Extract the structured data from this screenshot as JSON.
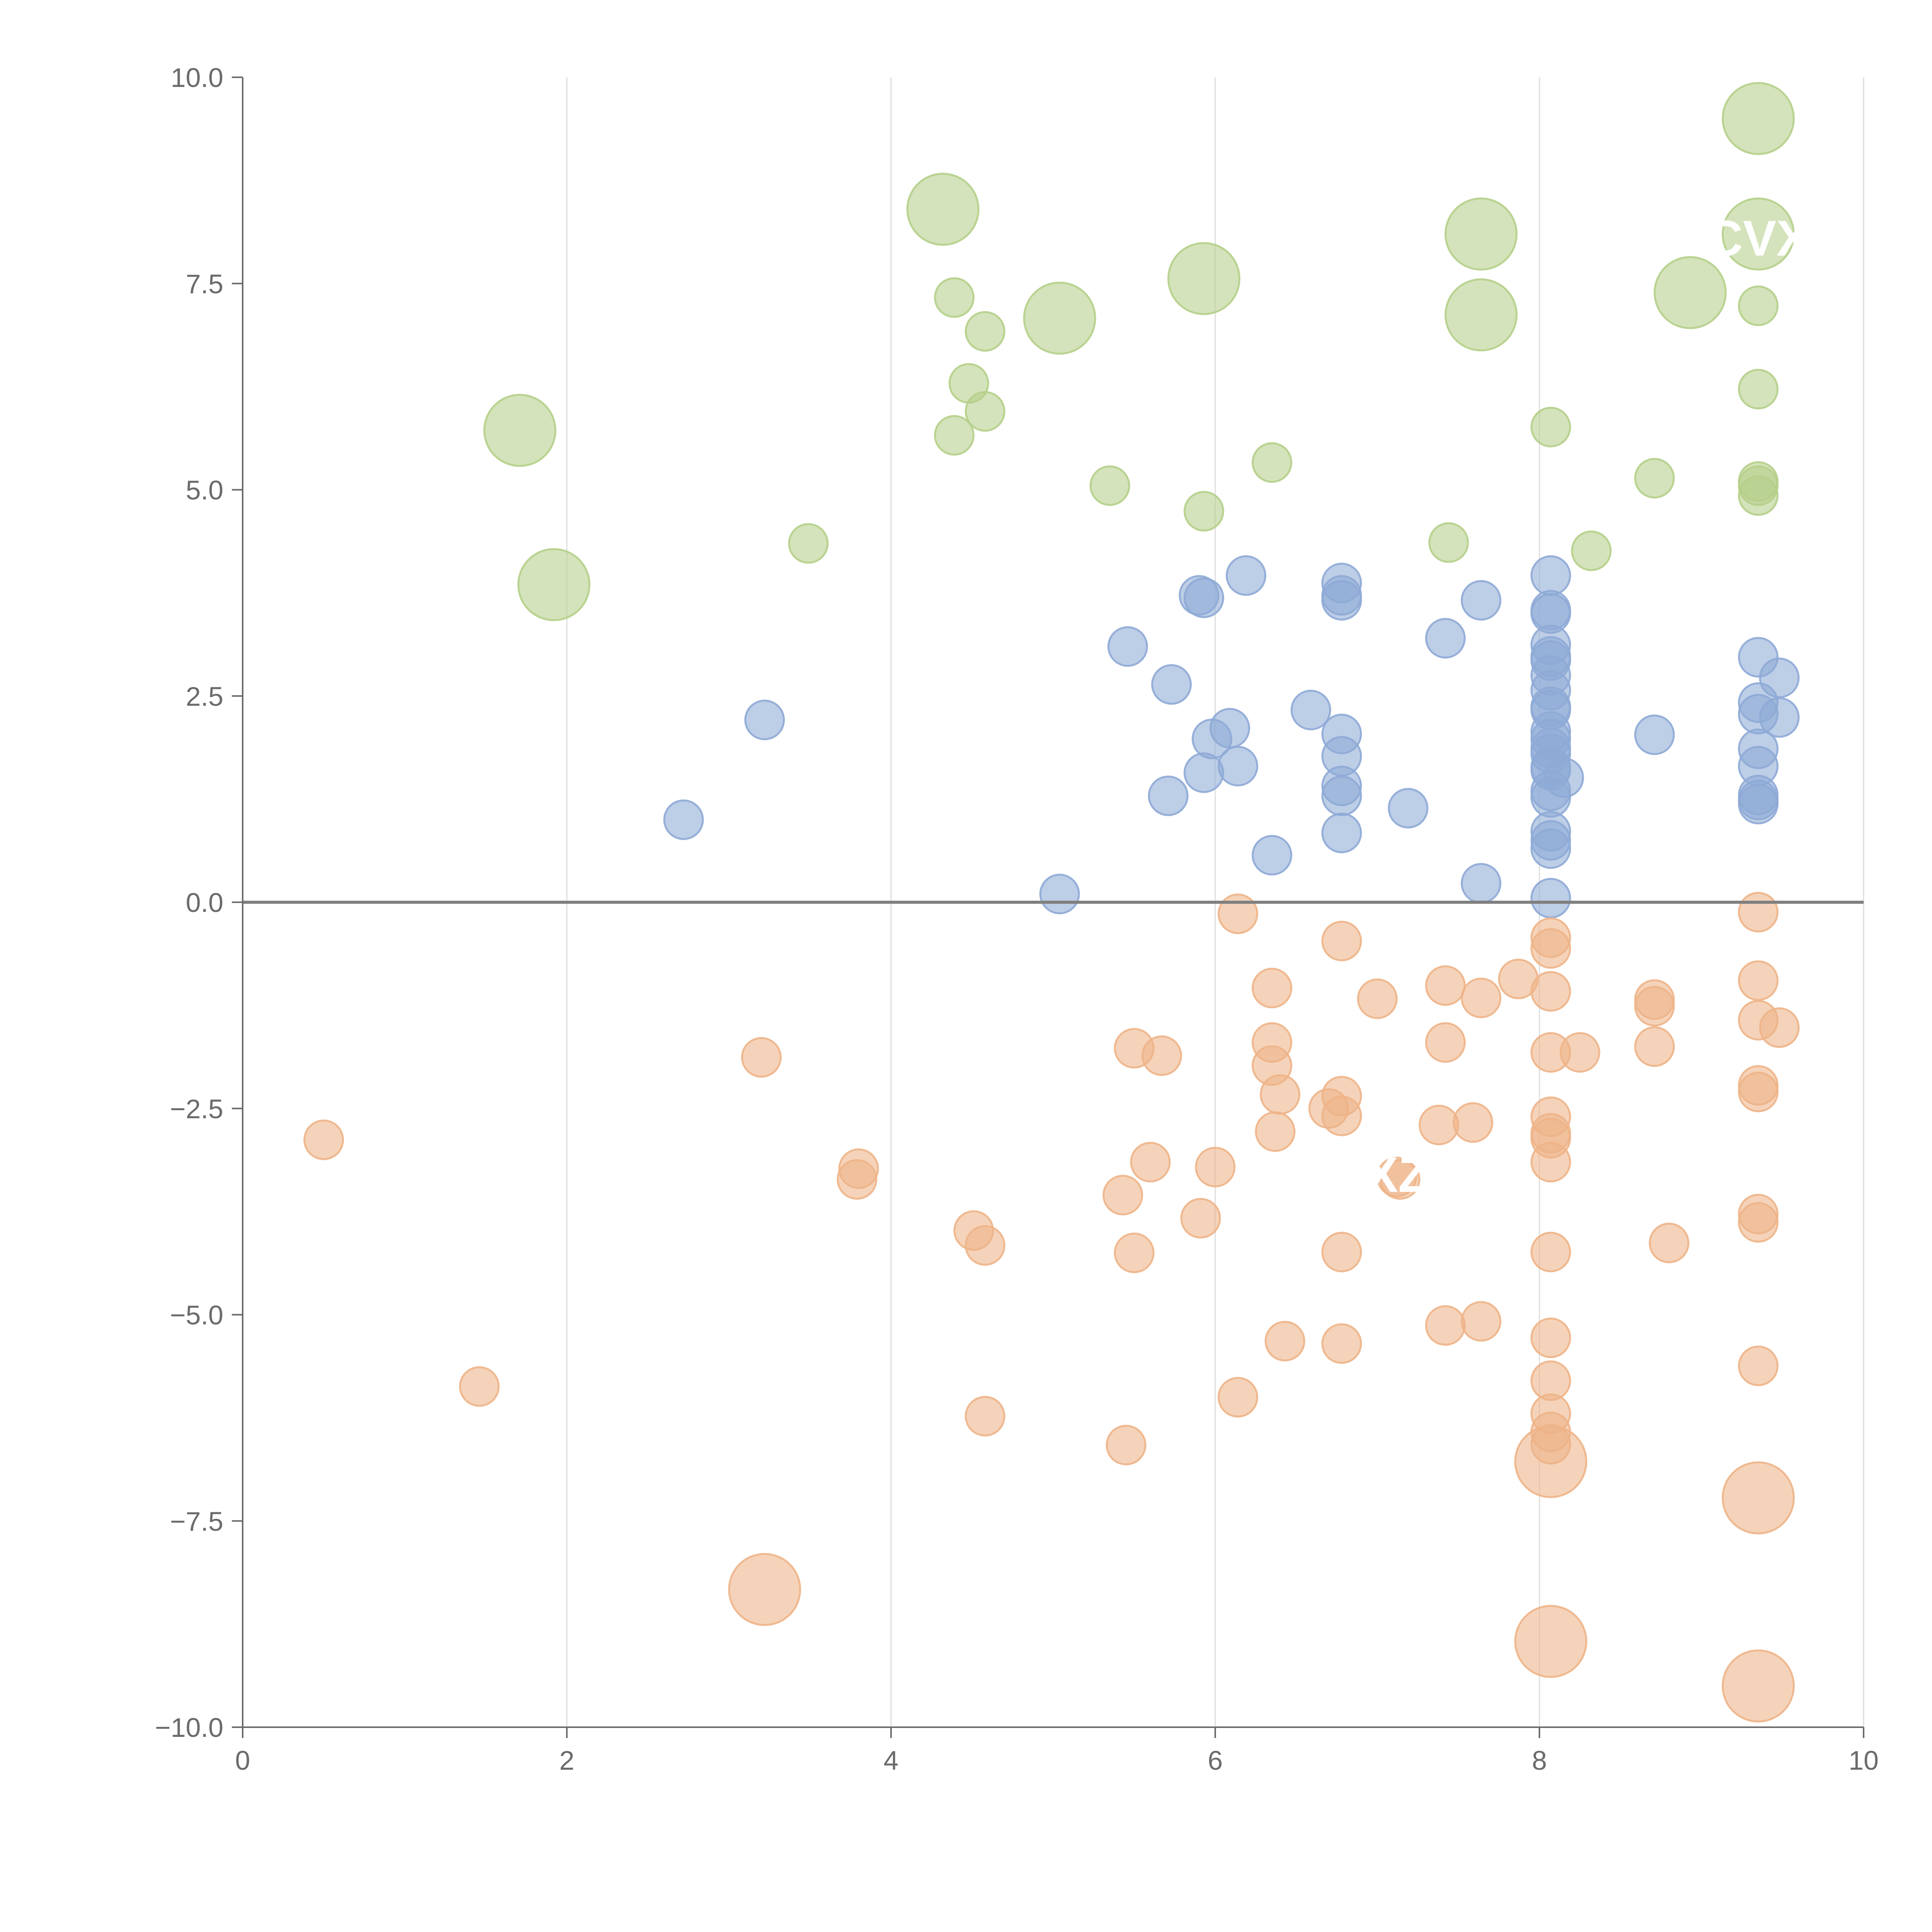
{
  "chart_data": {
    "type": "scatter",
    "title": "",
    "xlabel": "",
    "ylabel": "",
    "xlim": [
      0,
      10
    ],
    "ylim": [
      -10,
      10
    ],
    "x_ticks": [
      0,
      2,
      4,
      6,
      8,
      10
    ],
    "x_tick_labels": [
      "0",
      "2",
      "4",
      "6",
      "8",
      "10"
    ],
    "y_ticks": [
      10,
      7.5,
      5,
      2.5,
      0,
      -2.5,
      -5,
      -7.5,
      -10
    ],
    "y_tick_labels": [
      "10.0",
      "7.5",
      "5.0",
      "2.5",
      "0.0",
      "−2.5",
      "−5.0",
      "−7.5",
      "−10.0"
    ],
    "vertical_grid": true,
    "horizontal_grid": false,
    "zero_line": true,
    "legend": "none",
    "series": [
      {
        "color": "#b5cf8a",
        "size_unit": "relative bubble size",
        "points": [
          [
            1.71,
            5.72,
            2
          ],
          [
            1.92,
            3.85,
            2
          ],
          [
            3.49,
            4.35,
            1
          ],
          [
            4.32,
            8.4,
            2
          ],
          [
            4.39,
            7.33,
            1
          ],
          [
            4.48,
            6.29,
            1
          ],
          [
            4.58,
            6.92,
            1
          ],
          [
            4.39,
            5.66,
            1
          ],
          [
            4.58,
            5.95,
            1
          ],
          [
            5.04,
            7.08,
            2
          ],
          [
            5.35,
            5.05,
            1
          ],
          [
            5.93,
            7.56,
            2
          ],
          [
            5.93,
            4.74,
            1
          ],
          [
            6.35,
            5.33,
            1
          ],
          [
            7.44,
            4.36,
            1
          ],
          [
            7.64,
            8.1,
            2
          ],
          [
            7.64,
            7.12,
            2
          ],
          [
            8.07,
            5.76,
            1
          ],
          [
            8.32,
            4.26,
            1
          ],
          [
            8.71,
            5.14,
            1
          ],
          [
            8.93,
            7.39,
            2
          ],
          [
            9.35,
            9.5,
            2
          ],
          [
            9.35,
            8.1,
            2
          ],
          [
            9.35,
            7.23,
            1
          ],
          [
            9.35,
            6.22,
            1
          ],
          [
            9.35,
            5.1,
            1
          ],
          [
            9.35,
            5.05,
            1
          ],
          [
            9.35,
            4.93,
            1
          ]
        ]
      },
      {
        "color": "#8eaad6",
        "size_unit": "relative bubble size",
        "points": [
          [
            2.72,
            1.0,
            1
          ],
          [
            3.22,
            2.21,
            1
          ],
          [
            5.04,
            0.1,
            1
          ],
          [
            5.46,
            3.1,
            1
          ],
          [
            5.73,
            2.64,
            1
          ],
          [
            5.71,
            1.29,
            1
          ],
          [
            5.9,
            3.72,
            1
          ],
          [
            5.93,
            3.69,
            1
          ],
          [
            5.93,
            1.57,
            1
          ],
          [
            5.98,
            1.98,
            1
          ],
          [
            6.09,
            2.11,
            1
          ],
          [
            6.14,
            1.65,
            1
          ],
          [
            6.19,
            3.96,
            1
          ],
          [
            6.35,
            0.57,
            1
          ],
          [
            6.59,
            2.33,
            1
          ],
          [
            6.78,
            3.87,
            1
          ],
          [
            6.78,
            3.72,
            1
          ],
          [
            6.78,
            3.66,
            1
          ],
          [
            6.78,
            2.04,
            1
          ],
          [
            6.78,
            1.77,
            1
          ],
          [
            6.78,
            1.41,
            1
          ],
          [
            6.78,
            1.29,
            1
          ],
          [
            6.78,
            0.84,
            1
          ],
          [
            7.19,
            1.14,
            1
          ],
          [
            7.42,
            3.2,
            1
          ],
          [
            7.64,
            3.66,
            1
          ],
          [
            7.64,
            0.23,
            1
          ],
          [
            8.07,
            3.96,
            1
          ],
          [
            8.07,
            3.54,
            1
          ],
          [
            8.07,
            3.5,
            1
          ],
          [
            8.07,
            3.12,
            1
          ],
          [
            8.07,
            2.98,
            1
          ],
          [
            8.07,
            2.93,
            1
          ],
          [
            8.07,
            2.75,
            1
          ],
          [
            8.07,
            2.57,
            1
          ],
          [
            8.07,
            2.37,
            1
          ],
          [
            8.07,
            2.33,
            1
          ],
          [
            8.07,
            2.07,
            1
          ],
          [
            8.07,
            1.98,
            1
          ],
          [
            8.07,
            1.87,
            1
          ],
          [
            8.07,
            1.8,
            1
          ],
          [
            8.07,
            1.64,
            1
          ],
          [
            8.07,
            1.6,
            1
          ],
          [
            8.07,
            1.35,
            1
          ],
          [
            8.07,
            1.27,
            1
          ],
          [
            8.07,
            0.86,
            1
          ],
          [
            8.07,
            0.75,
            1
          ],
          [
            8.07,
            0.65,
            1
          ],
          [
            8.07,
            0.05,
            1
          ],
          [
            8.15,
            1.51,
            1
          ],
          [
            8.71,
            2.03,
            1
          ],
          [
            9.35,
            2.97,
            1
          ],
          [
            9.35,
            2.42,
            1
          ],
          [
            9.35,
            2.28,
            1
          ],
          [
            9.35,
            1.86,
            1
          ],
          [
            9.35,
            1.65,
            1
          ],
          [
            9.35,
            1.3,
            1
          ],
          [
            9.35,
            1.24,
            1
          ],
          [
            9.35,
            1.19,
            1
          ],
          [
            9.48,
            2.72,
            1
          ],
          [
            9.48,
            2.24,
            1
          ]
        ]
      },
      {
        "color": "#eeb488",
        "size_unit": "relative bubble size",
        "points": [
          [
            0.5,
            -2.88,
            1
          ],
          [
            1.46,
            -5.87,
            1
          ],
          [
            3.2,
            -1.88,
            1
          ],
          [
            3.22,
            -8.33,
            2
          ],
          [
            3.8,
            -3.23,
            1
          ],
          [
            3.79,
            -3.36,
            1
          ],
          [
            4.51,
            -3.98,
            1
          ],
          [
            4.58,
            -4.16,
            1
          ],
          [
            4.58,
            -6.23,
            1
          ],
          [
            5.43,
            -3.55,
            1
          ],
          [
            5.45,
            -6.58,
            1
          ],
          [
            5.5,
            -1.77,
            1
          ],
          [
            5.5,
            -4.25,
            1
          ],
          [
            5.6,
            -3.15,
            1
          ],
          [
            5.67,
            -1.86,
            1
          ],
          [
            5.91,
            -3.83,
            1
          ],
          [
            6.0,
            -3.21,
            1
          ],
          [
            6.14,
            -0.14,
            1
          ],
          [
            6.14,
            -6.0,
            1
          ],
          [
            6.35,
            -1.04,
            1
          ],
          [
            6.35,
            -1.7,
            1
          ],
          [
            6.35,
            -1.98,
            1
          ],
          [
            6.37,
            -2.78,
            1
          ],
          [
            6.4,
            -2.33,
            1
          ],
          [
            6.43,
            -5.32,
            1
          ],
          [
            6.7,
            -2.5,
            1
          ],
          [
            6.78,
            -0.47,
            1
          ],
          [
            6.78,
            -2.35,
            1
          ],
          [
            6.78,
            -2.59,
            1
          ],
          [
            6.78,
            -4.24,
            1
          ],
          [
            6.78,
            -5.35,
            1
          ],
          [
            7.0,
            -1.17,
            1
          ],
          [
            7.12,
            -3.33,
            1
          ],
          [
            7.14,
            -3.36,
            1
          ],
          [
            7.38,
            -2.7,
            1
          ],
          [
            7.42,
            -1.01,
            1
          ],
          [
            7.42,
            -1.7,
            1
          ],
          [
            7.42,
            -5.13,
            1
          ],
          [
            7.59,
            -2.67,
            1
          ],
          [
            7.64,
            -1.16,
            1
          ],
          [
            7.64,
            -5.08,
            1
          ],
          [
            7.87,
            -0.93,
            1
          ],
          [
            8.07,
            -0.43,
            1
          ],
          [
            8.07,
            -0.56,
            1
          ],
          [
            8.07,
            -1.08,
            1
          ],
          [
            8.07,
            -1.82,
            1
          ],
          [
            8.07,
            -2.6,
            1
          ],
          [
            8.07,
            -2.8,
            1
          ],
          [
            8.07,
            -2.86,
            1
          ],
          [
            8.07,
            -3.15,
            1
          ],
          [
            8.07,
            -4.24,
            1
          ],
          [
            8.07,
            -5.28,
            1
          ],
          [
            8.07,
            -5.8,
            1
          ],
          [
            8.07,
            -6.2,
            1
          ],
          [
            8.07,
            -6.42,
            1
          ],
          [
            8.07,
            -6.57,
            1
          ],
          [
            8.07,
            -6.78,
            2
          ],
          [
            8.07,
            -8.96,
            2
          ],
          [
            8.25,
            -1.82,
            1
          ],
          [
            8.71,
            -1.18,
            1
          ],
          [
            8.71,
            -1.26,
            1
          ],
          [
            8.71,
            -1.75,
            1
          ],
          [
            8.8,
            -4.13,
            1
          ],
          [
            9.35,
            -0.12,
            1
          ],
          [
            9.35,
            -0.95,
            1
          ],
          [
            9.35,
            -1.43,
            1
          ],
          [
            9.35,
            -2.22,
            1
          ],
          [
            9.35,
            -2.3,
            1
          ],
          [
            9.35,
            -3.78,
            1
          ],
          [
            9.35,
            -3.88,
            1
          ],
          [
            9.35,
            -5.62,
            1
          ],
          [
            9.35,
            -7.22,
            2
          ],
          [
            9.35,
            -9.5,
            2
          ],
          [
            9.48,
            -1.52,
            1
          ]
        ]
      }
    ],
    "annotations": [
      {
        "text": "CVX",
        "x": 9.35,
        "y": 8.05
      },
      {
        "text": "XZ",
        "x": 7.12,
        "y": -3.3
      }
    ]
  }
}
